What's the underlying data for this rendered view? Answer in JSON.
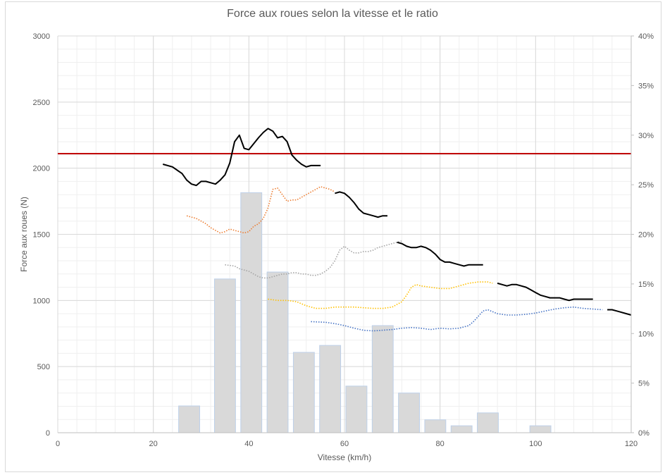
{
  "chart_data": {
    "type": "bar",
    "title": "Force aux roues selon la vitesse et le ratio",
    "xlabel": "Vitesse (km/h)",
    "ylabel": "Force aux roues (N)",
    "xlim": [
      0,
      120
    ],
    "ylim": [
      0,
      3000
    ],
    "y2lim": [
      0,
      0.4
    ],
    "x_ticks": [
      "0",
      "20",
      "40",
      "60",
      "80",
      "100",
      "120"
    ],
    "y_ticks": [
      "0",
      "500",
      "1000",
      "1500",
      "2000",
      "2500",
      "3000"
    ],
    "y2_ticks": [
      "0%",
      "5%",
      "10%",
      "15%",
      "20%",
      "25%",
      "30%",
      "35%",
      "40%"
    ],
    "grid": true,
    "colors": {
      "bars": "#d9d9d9",
      "bar_edge": "#bdd0e9",
      "grid_major": "#d9d9d9",
      "grid_minor": "#efefef",
      "limit_line": "#c00000",
      "solid_curves": "#000000",
      "dotted_orange": "#ed7d31",
      "dotted_grey": "#a5a5a5",
      "dotted_gold": "#ffc000",
      "dotted_blue": "#4472c4"
    },
    "bars": {
      "axis": "secondary",
      "x": [
        27.5,
        35,
        40.5,
        46,
        51.5,
        57,
        62.5,
        68,
        73.5,
        79,
        84.5,
        90,
        101
      ],
      "values": [
        0.027,
        0.155,
        0.242,
        0.162,
        0.081,
        0.088,
        0.047,
        0.108,
        0.04,
        0.013,
        0.007,
        0.02,
        0.007
      ]
    },
    "limit_line": {
      "y": 2110
    },
    "solid_series": [
      {
        "x": [
          22,
          24,
          26,
          27,
          28,
          29,
          30,
          31,
          32,
          33,
          34,
          35,
          36,
          37,
          38,
          39,
          40,
          42,
          43,
          44,
          45,
          46,
          47,
          48,
          49,
          50,
          51,
          52,
          53,
          54,
          55
        ],
        "y": [
          2030,
          2010,
          1960,
          1910,
          1880,
          1870,
          1900,
          1900,
          1890,
          1880,
          1910,
          1950,
          2040,
          2200,
          2250,
          2150,
          2140,
          2230,
          2270,
          2300,
          2280,
          2230,
          2240,
          2200,
          2100,
          2060,
          2030,
          2010,
          2020,
          2020,
          2020
        ]
      },
      {
        "x": [
          58,
          59,
          60,
          61,
          62,
          63,
          64,
          65,
          66,
          67,
          68,
          69
        ],
        "y": [
          1810,
          1820,
          1810,
          1780,
          1740,
          1690,
          1660,
          1650,
          1640,
          1630,
          1640,
          1640
        ]
      },
      {
        "x": [
          71,
          72,
          73,
          74,
          75,
          76,
          77,
          78,
          79,
          80,
          81,
          82,
          83,
          84,
          85,
          86,
          88,
          89
        ],
        "y": [
          1440,
          1430,
          1410,
          1400,
          1400,
          1410,
          1400,
          1380,
          1350,
          1310,
          1290,
          1290,
          1280,
          1270,
          1260,
          1270,
          1270,
          1270
        ]
      },
      {
        "x": [
          92,
          93,
          94,
          95,
          96,
          97,
          98,
          99,
          100,
          101,
          102,
          103,
          104,
          105,
          106,
          107,
          108,
          109,
          110,
          112
        ],
        "y": [
          1130,
          1120,
          1110,
          1120,
          1120,
          1110,
          1100,
          1080,
          1060,
          1040,
          1030,
          1020,
          1020,
          1020,
          1010,
          1000,
          1010,
          1010,
          1010,
          1010
        ]
      },
      {
        "x": [
          115,
          116,
          117,
          118,
          119,
          120
        ],
        "y": [
          930,
          930,
          920,
          910,
          900,
          890
        ]
      }
    ],
    "dotted_series": [
      {
        "color": "dotted_orange",
        "x": [
          27,
          29,
          30,
          31,
          32,
          33,
          34,
          35,
          36,
          37,
          38,
          39,
          40,
          41,
          42,
          43,
          44,
          45,
          46,
          47,
          48,
          49,
          50,
          51,
          52,
          53,
          54,
          55,
          56,
          57,
          58
        ],
        "y": [
          1640,
          1620,
          1600,
          1580,
          1550,
          1530,
          1510,
          1520,
          1540,
          1530,
          1520,
          1510,
          1520,
          1560,
          1580,
          1620,
          1700,
          1840,
          1850,
          1800,
          1750,
          1760,
          1760,
          1780,
          1800,
          1820,
          1840,
          1860,
          1850,
          1840,
          1820
        ]
      },
      {
        "color": "dotted_grey",
        "x": [
          35,
          37,
          38,
          40,
          41,
          42,
          43,
          44,
          45,
          46,
          47,
          48,
          49,
          50,
          51,
          52,
          53,
          54,
          55,
          56,
          57,
          58,
          59,
          60,
          61,
          62,
          63,
          64,
          65,
          66,
          67,
          68,
          69,
          70,
          71,
          72
        ],
        "y": [
          1270,
          1260,
          1240,
          1220,
          1200,
          1180,
          1170,
          1170,
          1180,
          1190,
          1200,
          1200,
          1210,
          1210,
          1200,
          1200,
          1190,
          1190,
          1200,
          1220,
          1250,
          1300,
          1380,
          1410,
          1380,
          1360,
          1360,
          1370,
          1370,
          1380,
          1400,
          1410,
          1420,
          1430,
          1440,
          1450
        ]
      },
      {
        "color": "dotted_gold",
        "x": [
          44,
          46,
          48,
          50,
          52,
          54,
          56,
          58,
          60,
          62,
          64,
          66,
          68,
          70,
          72,
          73,
          74,
          75,
          76,
          78,
          80,
          82,
          84,
          86,
          88,
          90,
          91
        ],
        "y": [
          1010,
          1000,
          1000,
          990,
          960,
          940,
          940,
          950,
          950,
          950,
          945,
          940,
          940,
          950,
          990,
          1040,
          1100,
          1120,
          1110,
          1100,
          1090,
          1090,
          1110,
          1130,
          1140,
          1140,
          1130
        ]
      },
      {
        "color": "dotted_blue",
        "x": [
          53,
          56,
          58,
          60,
          62,
          64,
          66,
          68,
          70,
          72,
          74,
          76,
          78,
          80,
          82,
          84,
          86,
          87,
          88,
          89,
          90,
          92,
          94,
          96,
          98,
          100,
          102,
          104,
          106,
          108,
          110,
          112,
          114
        ],
        "y": [
          840,
          835,
          825,
          810,
          790,
          775,
          770,
          775,
          780,
          790,
          795,
          790,
          780,
          790,
          785,
          790,
          810,
          840,
          880,
          920,
          930,
          900,
          890,
          890,
          895,
          905,
          920,
          935,
          945,
          950,
          940,
          935,
          930
        ]
      }
    ]
  }
}
